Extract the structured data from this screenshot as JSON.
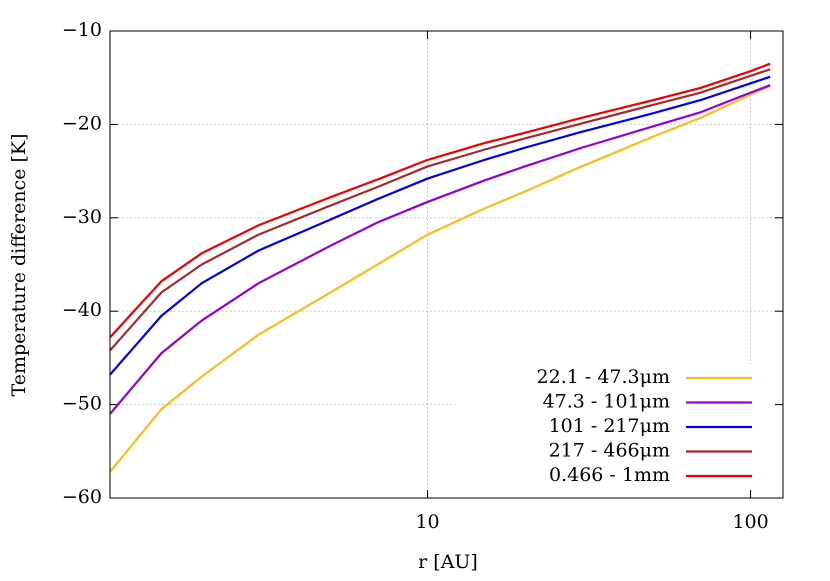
{
  "chart_data": {
    "type": "line",
    "x_label": "r [AU]",
    "y_label": "Temperature difference [K]",
    "x_log": true,
    "grid": true,
    "legend": "lower right",
    "xlim": [
      1.04,
      126
    ],
    "ylim": [
      -60,
      -10
    ],
    "xticks": [
      10,
      100
    ],
    "yticks": [
      {
        "value": -60,
        "label": "−60"
      },
      {
        "value": -50,
        "label": "−50"
      },
      {
        "value": -40,
        "label": "−40"
      },
      {
        "value": -30,
        "label": "−30"
      },
      {
        "value": -20,
        "label": "−20"
      },
      {
        "value": -10,
        "label": "−10"
      }
    ],
    "x": [
      1.04,
      1.5,
      2,
      3,
      5,
      7,
      10,
      15,
      20,
      30,
      50,
      70,
      100,
      115
    ],
    "series": [
      {
        "name": "22.1 - 47.3μm",
        "color": "#fbbc1c",
        "values": [
          -57.2,
          -50.5,
          -47,
          -42.5,
          -38,
          -35,
          -31.8,
          -29,
          -27.2,
          -24.5,
          -21.3,
          -19.3,
          -16.8,
          -15.9
        ]
      },
      {
        "name": "47.3 - 101μm",
        "color": "#9400d3",
        "values": [
          -51,
          -44.5,
          -41,
          -37,
          -33,
          -30.5,
          -28.3,
          -26,
          -24.5,
          -22.5,
          -20.2,
          -18.7,
          -16.6,
          -15.8
        ]
      },
      {
        "name": "101 - 217μm",
        "color": "#0000ee",
        "values": [
          -46.8,
          -40.5,
          -37,
          -33.5,
          -30.2,
          -28,
          -25.8,
          -23.8,
          -22.5,
          -20.8,
          -18.8,
          -17.4,
          -15.6,
          -14.9
        ]
      },
      {
        "name": "217 - 466μm",
        "color": "#a52a2a",
        "values": [
          -44.2,
          -38,
          -35,
          -31.8,
          -28.7,
          -26.7,
          -24.5,
          -22.7,
          -21.5,
          -19.9,
          -17.9,
          -16.6,
          -14.8,
          -14.1
        ]
      },
      {
        "name": "0.466 - 1mm",
        "color": "#ee0000",
        "values": [
          -42.8,
          -36.8,
          -33.8,
          -30.8,
          -27.8,
          -25.9,
          -23.8,
          -22,
          -20.9,
          -19.3,
          -17.4,
          -16.1,
          -14.3,
          -13.5
        ]
      }
    ]
  }
}
